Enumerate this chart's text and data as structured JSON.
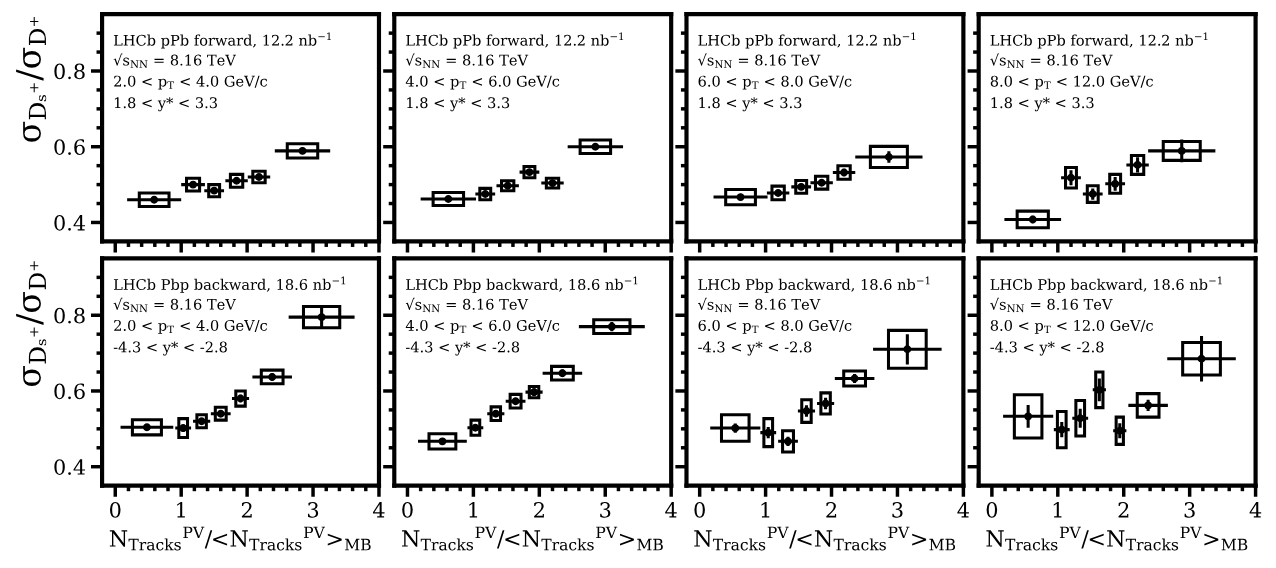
{
  "chart_data": [
    {
      "type": "scatter",
      "ylabel": "σ$_{Dₛ⁺}$/σ$_{D⁺}$",
      "xlim": [
        -0.2,
        4
      ],
      "xticks": [
        0,
        1,
        2,
        3,
        4
      ],
      "ylim": [
        0.35,
        0.95
      ],
      "yticks": [
        0.4,
        0.6,
        0.8
      ],
      "tick_labels": "y",
      "marker": "circle",
      "annotations": [
        "LHCb pPb forward, 12.2 nb$^{−1}$",
        "√s$_{NN}$ = 8.16 TeV",
        "2.0 < p$_{T}$ < 4.0 GeV/c",
        "1.8 < y* < 3.3"
      ],
      "series": [
        {
          "color": "#000000",
          "x": [
            0.59,
            1.18,
            1.5,
            1.84,
            2.18,
            2.84
          ],
          "values": [
            0.46,
            0.5,
            0.484,
            0.51,
            0.52,
            0.589
          ],
          "errors": [
            0.005,
            0.006,
            0.006,
            0.006,
            0.006,
            0.008
          ],
          "xerrors": [
            0.41,
            0.18,
            0.15,
            0.17,
            0.17,
            0.42
          ]
        },
        {
          "type": "bar",
          "color": "#000000",
          "x": [
            0.59,
            1.18,
            1.5,
            1.84,
            2.18,
            2.84
          ],
          "base": [
            0.442,
            0.483,
            0.468,
            0.493,
            0.505,
            0.57
          ],
          "values": [
            0.036,
            0.034,
            0.032,
            0.034,
            0.03,
            0.038
          ]
        }
      ]
    },
    {
      "type": "scatter",
      "xlim": [
        -0.2,
        4
      ],
      "xticks": [
        0,
        1,
        2,
        3,
        4
      ],
      "ylim": [
        0.35,
        0.95
      ],
      "yticks": [
        0.4,
        0.6,
        0.8
      ],
      "tick_labels": false,
      "marker": "circle",
      "annotations": [
        "LHCb pPb forward, 12.2 nb$^{−1}$",
        "√s$_{NN}$ = 8.16 TeV",
        "4.0 < p$_{T}$ < 6.0 GeV/c",
        "1.8 < y* < 3.3"
      ],
      "series": [
        {
          "color": "#000000",
          "x": [
            0.62,
            1.18,
            1.52,
            1.85,
            2.2,
            2.85
          ],
          "values": [
            0.462,
            0.475,
            0.497,
            0.533,
            0.504,
            0.6
          ],
          "errors": [
            0.005,
            0.006,
            0.006,
            0.007,
            0.006,
            0.008
          ],
          "xerrors": [
            0.42,
            0.15,
            0.17,
            0.15,
            0.17,
            0.42
          ]
        },
        {
          "type": "bar",
          "color": "#000000",
          "x": [
            0.62,
            1.18,
            1.52,
            1.85,
            2.2,
            2.85
          ],
          "base": [
            0.445,
            0.46,
            0.484,
            0.518,
            0.491,
            0.582
          ],
          "values": [
            0.034,
            0.03,
            0.026,
            0.03,
            0.026,
            0.036
          ]
        }
      ]
    },
    {
      "type": "scatter",
      "xlim": [
        -0.2,
        4
      ],
      "xticks": [
        0,
        1,
        2,
        3,
        4
      ],
      "ylim": [
        0.35,
        0.95
      ],
      "yticks": [
        0.4,
        0.6,
        0.8
      ],
      "tick_labels": false,
      "marker": "circle",
      "annotations": [
        "LHCb pPb forward, 12.2 nb$^{−1}$",
        "√s$_{NN}$ = 8.16 TeV",
        "6.0 < p$_{T}$ < 8.0 GeV/c",
        "1.8 < y* < 3.3"
      ],
      "series": [
        {
          "color": "#000000",
          "x": [
            0.62,
            1.19,
            1.54,
            1.85,
            2.19,
            2.87
          ],
          "values": [
            0.467,
            0.478,
            0.494,
            0.505,
            0.532,
            0.573
          ],
          "errors": [
            0.006,
            0.008,
            0.008,
            0.008,
            0.01,
            0.015
          ],
          "xerrors": [
            0.41,
            0.17,
            0.15,
            0.17,
            0.17,
            0.51
          ]
        },
        {
          "type": "bar",
          "color": "#000000",
          "x": [
            0.62,
            1.19,
            1.54,
            1.85,
            2.19,
            2.87
          ],
          "base": [
            0.447,
            0.46,
            0.477,
            0.488,
            0.514,
            0.545
          ],
          "values": [
            0.04,
            0.036,
            0.034,
            0.034,
            0.036,
            0.056
          ]
        }
      ]
    },
    {
      "type": "scatter",
      "xlim": [
        -0.2,
        4
      ],
      "xticks": [
        0,
        1,
        2,
        3,
        4
      ],
      "ylim": [
        0.35,
        0.95
      ],
      "yticks": [
        0.4,
        0.6,
        0.8
      ],
      "tick_labels": false,
      "marker": "circle",
      "annotations": [
        "LHCb pPb forward, 12.2 nb$^{−1}$",
        "√s$_{NN}$ = 8.16 TeV",
        "8.0 < p$_{T}$ < 12.0 GeV/c",
        "1.8 < y* < 3.3"
      ],
      "series": [
        {
          "color": "#000000",
          "x": [
            0.62,
            1.2,
            1.53,
            1.87,
            2.21,
            2.88
          ],
          "values": [
            0.408,
            0.518,
            0.475,
            0.502,
            0.552,
            0.589
          ],
          "errors": [
            0.01,
            0.02,
            0.015,
            0.018,
            0.02,
            0.03
          ],
          "xerrors": [
            0.43,
            0.15,
            0.15,
            0.15,
            0.17,
            0.51
          ]
        },
        {
          "type": "bar",
          "color": "#000000",
          "x": [
            0.62,
            1.2,
            1.53,
            1.87,
            2.21,
            2.88
          ],
          "base": [
            0.386,
            0.491,
            0.453,
            0.477,
            0.527,
            0.564
          ],
          "values": [
            0.044,
            0.054,
            0.044,
            0.05,
            0.05,
            0.05
          ]
        }
      ]
    },
    {
      "type": "scatter",
      "ylabel": "σ$_{Dₛ⁺}$/σ$_{D⁺}$",
      "xlabel": "N$_{Tracks}$$^{PV}$/<N$_{Tracks}$$^{PV}$>$_{MB}$",
      "xlim": [
        -0.2,
        4
      ],
      "xticks": [
        0,
        1,
        2,
        3,
        4
      ],
      "ylim": [
        0.35,
        0.95
      ],
      "yticks": [
        0.4,
        0.6,
        0.8
      ],
      "marker": "circle",
      "annotations": [
        "LHCb Pbp backward, 18.6 nb$^{−1}$",
        "√s$_{NN}$ = 8.16 TeV",
        "2.0 < p$_{T}$ < 4.0 GeV/c",
        "-4.3 < y* < -2.8"
      ],
      "series": [
        {
          "color": "#000000",
          "x": [
            0.48,
            1.03,
            1.31,
            1.6,
            1.9,
            2.38,
            3.13
          ],
          "values": [
            0.504,
            0.502,
            0.52,
            0.54,
            0.58,
            0.637,
            0.795
          ],
          "errors": [
            0.005,
            0.01,
            0.008,
            0.008,
            0.01,
            0.01,
            0.03
          ],
          "xerrors": [
            0.4,
            0.12,
            0.13,
            0.15,
            0.13,
            0.3,
            0.5
          ]
        },
        {
          "type": "bar",
          "color": "#000000",
          "x": [
            0.48,
            1.03,
            1.31,
            1.6,
            1.9,
            2.38,
            3.13
          ],
          "base": [
            0.484,
            0.477,
            0.503,
            0.523,
            0.56,
            0.619,
            0.767
          ],
          "values": [
            0.04,
            0.05,
            0.034,
            0.034,
            0.04,
            0.036,
            0.056
          ]
        }
      ]
    },
    {
      "type": "scatter",
      "xlabel": "N$_{Tracks}$$^{PV}$/<N$_{Tracks}$$^{PV}$>$_{MB}$",
      "xlim": [
        -0.2,
        4
      ],
      "xticks": [
        0,
        1,
        2,
        3,
        4
      ],
      "ylim": [
        0.35,
        0.95
      ],
      "yticks": [
        0.4,
        0.6,
        0.8
      ],
      "tick_labels": "x",
      "marker": "circle",
      "annotations": [
        "LHCb Pbp backward, 18.6 nb$^{−1}$",
        "√s$_{NN}$ = 8.16 TeV",
        "4.0 < p$_{T}$ < 6.0 GeV/c",
        "-4.3 < y* < -2.8"
      ],
      "series": [
        {
          "color": "#000000",
          "x": [
            0.53,
            1.03,
            1.34,
            1.64,
            1.92,
            2.35,
            3.1
          ],
          "values": [
            0.467,
            0.503,
            0.54,
            0.573,
            0.597,
            0.647,
            0.77
          ],
          "errors": [
            0.005,
            0.008,
            0.008,
            0.008,
            0.01,
            0.01,
            0.012
          ],
          "xerrors": [
            0.37,
            0.12,
            0.13,
            0.15,
            0.13,
            0.3,
            0.5
          ]
        },
        {
          "type": "bar",
          "color": "#000000",
          "x": [
            0.53,
            1.03,
            1.34,
            1.64,
            1.92,
            2.35,
            3.1
          ],
          "base": [
            0.447,
            0.483,
            0.522,
            0.555,
            0.582,
            0.629,
            0.752
          ],
          "values": [
            0.04,
            0.04,
            0.036,
            0.036,
            0.03,
            0.036,
            0.036
          ]
        }
      ]
    },
    {
      "type": "scatter",
      "xlabel": "N$_{Tracks}$$^{PV}$/<N$_{Tracks}$$^{PV}$>$_{MB}$",
      "xlim": [
        -0.2,
        4
      ],
      "xticks": [
        0,
        1,
        2,
        3,
        4
      ],
      "ylim": [
        0.35,
        0.95
      ],
      "yticks": [
        0.4,
        0.6,
        0.8
      ],
      "tick_labels": "x",
      "marker": "circle",
      "annotations": [
        "LHCb Pbp backward, 18.6 nb$^{−1}$",
        "√s$_{NN}$ = 8.16 TeV",
        "6.0 < p$_{T}$ < 8.0 GeV/c",
        "-4.3 < y* < -2.8"
      ],
      "series": [
        {
          "color": "#000000",
          "x": [
            0.54,
            1.04,
            1.34,
            1.62,
            1.91,
            2.35,
            3.15
          ],
          "values": [
            0.502,
            0.49,
            0.467,
            0.547,
            0.567,
            0.633,
            0.71
          ],
          "errors": [
            0.012,
            0.015,
            0.012,
            0.015,
            0.015,
            0.012,
            0.04
          ],
          "xerrors": [
            0.38,
            0.12,
            0.15,
            0.13,
            0.13,
            0.3,
            0.52
          ]
        },
        {
          "type": "bar",
          "color": "#000000",
          "x": [
            0.54,
            1.04,
            1.34,
            1.62,
            1.91,
            2.35,
            3.15
          ],
          "base": [
            0.467,
            0.453,
            0.439,
            0.517,
            0.539,
            0.613,
            0.66
          ],
          "values": [
            0.07,
            0.074,
            0.056,
            0.06,
            0.056,
            0.04,
            0.1
          ]
        }
      ]
    },
    {
      "type": "scatter",
      "xlabel": "N$_{Tracks}$$^{PV}$/<N$_{Tracks}$$^{PV}$>$_{MB}$",
      "xlim": [
        -0.2,
        4
      ],
      "xticks": [
        0,
        1,
        2,
        3,
        4
      ],
      "ylim": [
        0.35,
        0.95
      ],
      "yticks": [
        0.4,
        0.6,
        0.8
      ],
      "tick_labels": "x",
      "marker": "circle",
      "annotations": [
        "LHCb Pbp backward, 18.6 nb$^{−1}$",
        "√s$_{NN}$ = 8.16 TeV",
        "8.0 < p$_{T}$ < 12.0 GeV/c",
        "-4.3 < y* < -2.8"
      ],
      "series": [
        {
          "color": "#000000",
          "x": [
            0.55,
            1.06,
            1.34,
            1.63,
            1.94,
            2.37,
            3.18
          ],
          "values": [
            0.533,
            0.498,
            0.528,
            0.603,
            0.495,
            0.562,
            0.685
          ],
          "errors": [
            0.03,
            0.02,
            0.025,
            0.03,
            0.02,
            0.015,
            0.06
          ],
          "xerrors": [
            0.38,
            0.12,
            0.12,
            0.1,
            0.1,
            0.3,
            0.52
          ]
        },
        {
          "type": "bar",
          "color": "#000000",
          "x": [
            0.55,
            1.06,
            1.34,
            1.63,
            1.94,
            2.37,
            3.18
          ],
          "base": [
            0.476,
            0.45,
            0.481,
            0.556,
            0.459,
            0.531,
            0.642
          ],
          "values": [
            0.114,
            0.096,
            0.094,
            0.094,
            0.072,
            0.062,
            0.086
          ]
        }
      ]
    }
  ]
}
